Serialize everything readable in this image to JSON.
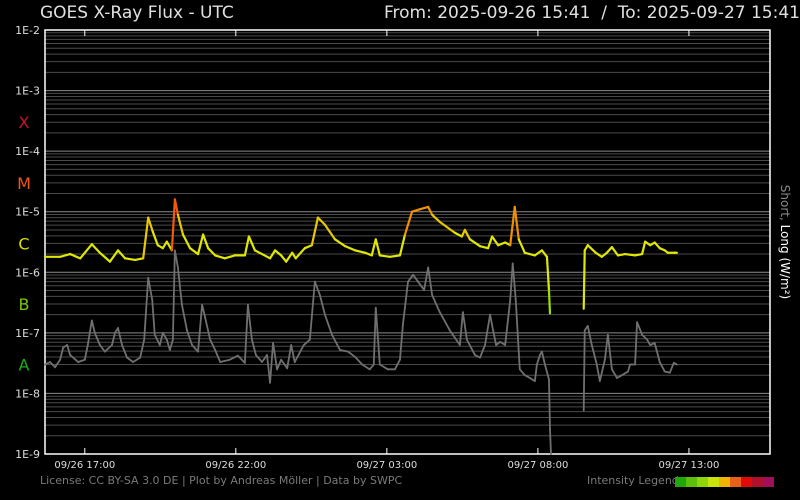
{
  "header": {
    "title": "GOES X-Ray Flux - UTC",
    "range": "From: 2025-09-26 15:41  /  To: 2025-09-27 15:41"
  },
  "footer": {
    "credits": "License: CC BY-SA 3.0 DE | Plot by Andreas Möller | Data by SWPC",
    "legend_label": "Intensity Legend",
    "legend_colors": [
      "#1fa80a",
      "#5cc00a",
      "#8cd60a",
      "#c8e40a",
      "#f0b400",
      "#e8601a",
      "#e00a0a",
      "#b0102a",
      "#a0105a"
    ]
  },
  "chart_data": {
    "type": "line",
    "title": "GOES X-Ray Flux - UTC",
    "ylabel_short": "Short,",
    "ylabel_long": "Long (W/m²)",
    "y_scale": "log",
    "ylim": [
      1e-09,
      0.01
    ],
    "y_ticks": [
      "1E-2",
      "1E-3",
      "1E-4",
      "1E-5",
      "1E-6",
      "1E-7",
      "1E-8",
      "1E-9"
    ],
    "xlim": [
      "09/26 15:41",
      "09/27 15:41"
    ],
    "x_ticks": [
      "09/26 17:00",
      "09/26 22:00",
      "09/27 03:00",
      "09/27 08:00",
      "09/27 13:00"
    ],
    "grid": true,
    "background": "#000000",
    "classes": [
      {
        "label": "X",
        "flux": 0.0003,
        "color": "#c8102e"
      },
      {
        "label": "M",
        "flux": 3e-05,
        "color": "#f05a0a"
      },
      {
        "label": "C",
        "flux": 3e-06,
        "color": "#d8e000"
      },
      {
        "label": "B",
        "flux": 3e-07,
        "color": "#78c800"
      },
      {
        "label": "A",
        "flux": 3e-08,
        "color": "#18b020"
      }
    ],
    "series": [
      {
        "name": "Long",
        "color": "#e0e800",
        "points": [
          [
            "15:41",
            1.8e-06
          ],
          [
            "16:11",
            1.8e-06
          ],
          [
            "16:31",
            2e-06
          ],
          [
            "16:51",
            1.7e-06
          ],
          [
            "17:14",
            2.9e-06
          ],
          [
            "17:30",
            2.1e-06
          ],
          [
            "17:50",
            1.5e-06
          ],
          [
            "18:06",
            2.3e-06
          ],
          [
            "18:20",
            1.7e-06
          ],
          [
            "18:40",
            1.6e-06
          ],
          [
            "18:56",
            1.7e-06
          ],
          [
            "19:06",
            8e-06
          ],
          [
            "19:15",
            4.7e-06
          ],
          [
            "19:25",
            2.8e-06
          ],
          [
            "19:35",
            2.5e-06
          ],
          [
            "19:43",
            3.2e-06
          ],
          [
            "19:53",
            2.3e-06
          ],
          [
            "19:59",
            1.6e-05
          ],
          [
            "20:05",
            8.9e-06
          ],
          [
            "20:15",
            4.2e-06
          ],
          [
            "20:29",
            2.5e-06
          ],
          [
            "20:45",
            2e-06
          ],
          [
            "20:55",
            4.2e-06
          ],
          [
            "21:05",
            2.5e-06
          ],
          [
            "21:19",
            1.9e-06
          ],
          [
            "21:38",
            1.7e-06
          ],
          [
            "21:58",
            1.9e-06
          ],
          [
            "22:18",
            1.9e-06
          ],
          [
            "22:26",
            3.9e-06
          ],
          [
            "22:38",
            2.3e-06
          ],
          [
            "22:52",
            2e-06
          ],
          [
            "23:08",
            1.7e-06
          ],
          [
            "23:18",
            2.3e-06
          ],
          [
            "23:30",
            1.9e-06
          ],
          [
            "23:40",
            1.5e-06
          ],
          [
            "23:52",
            2.1e-06
          ],
          [
            "23:59",
            1.7e-06
          ],
          [
            "00:17",
            2.5e-06
          ],
          [
            "00:31",
            2.8e-06
          ],
          [
            "00:43",
            8e-06
          ],
          [
            "00:57",
            6.1e-06
          ],
          [
            "01:17",
            3.5e-06
          ],
          [
            "01:37",
            2.7e-06
          ],
          [
            "01:57",
            2.3e-06
          ],
          [
            "02:17",
            2.1e-06
          ],
          [
            "02:30",
            1.9e-06
          ],
          [
            "02:38",
            3.5e-06
          ],
          [
            "02:46",
            1.9e-06
          ],
          [
            "03:06",
            1.8e-06
          ],
          [
            "03:26",
            1.9e-06
          ],
          [
            "03:36",
            4.2e-06
          ],
          [
            "03:50",
            1e-05
          ],
          [
            "04:06",
            1.1e-05
          ],
          [
            "04:22",
            1.2e-05
          ],
          [
            "04:30",
            8.9e-06
          ],
          [
            "04:45",
            6.8e-06
          ],
          [
            "05:15",
            4.5e-06
          ],
          [
            "05:29",
            3.9e-06
          ],
          [
            "05:35",
            5e-06
          ],
          [
            "05:45",
            3.5e-06
          ],
          [
            "06:05",
            2.7e-06
          ],
          [
            "06:21",
            2.5e-06
          ],
          [
            "06:29",
            3.9e-06
          ],
          [
            "06:41",
            2.8e-06
          ],
          [
            "06:55",
            3.1e-06
          ],
          [
            "07:05",
            2.8e-06
          ],
          [
            "07:14",
            1.2e-05
          ],
          [
            "07:22",
            3.5e-06
          ],
          [
            "07:34",
            2.1e-06
          ],
          [
            "07:54",
            1.9e-06
          ],
          [
            "08:08",
            2.3e-06
          ],
          [
            "08:18",
            1.8e-06
          ],
          [
            "08:22",
            5e-07
          ],
          [
            "08:24",
            2.1e-07
          ],
          null,
          [
            "09:31",
            2.5e-07
          ],
          [
            "09:33",
            2.3e-06
          ],
          [
            "09:39",
            2.8e-06
          ],
          [
            "09:55",
            2.1e-06
          ],
          [
            "10:07",
            1.8e-06
          ],
          [
            "10:17",
            2.1e-06
          ],
          [
            "10:27",
            2.6e-06
          ],
          [
            "10:39",
            1.9e-06
          ],
          [
            "10:53",
            2e-06
          ],
          [
            "11:13",
            1.9e-06
          ],
          [
            "11:27",
            2e-06
          ],
          [
            "11:33",
            3.2e-06
          ],
          [
            "11:43",
            2.8e-06
          ],
          [
            "11:52",
            3.1e-06
          ],
          [
            "12:02",
            2.5e-06
          ],
          [
            "12:12",
            2.3e-06
          ],
          [
            "12:18",
            2.1e-06
          ],
          [
            "12:32",
            2.1e-06
          ],
          [
            "12:36",
            2.1e-06
          ]
        ]
      },
      {
        "name": "Short",
        "color": "#707070",
        "points": [
          [
            "15:41",
            3e-08
          ],
          [
            "15:51",
            3.3e-08
          ],
          [
            "16:01",
            2.7e-08
          ],
          [
            "16:11",
            3.6e-08
          ],
          [
            "16:17",
            5.7e-08
          ],
          [
            "16:25",
            6.3e-08
          ],
          [
            "16:31",
            4.3e-08
          ],
          [
            "16:47",
            3.3e-08
          ],
          [
            "17:00",
            3.6e-08
          ],
          [
            "17:06",
            6.3e-08
          ],
          [
            "17:14",
            1.6e-07
          ],
          [
            "17:20",
            1e-07
          ],
          [
            "17:30",
            6.3e-08
          ],
          [
            "17:40",
            4.9e-08
          ],
          [
            "17:54",
            6.3e-08
          ],
          [
            "18:00",
            1e-07
          ],
          [
            "18:06",
            1.2e-07
          ],
          [
            "18:14",
            6.3e-08
          ],
          [
            "18:24",
            3.9e-08
          ],
          [
            "18:36",
            3.3e-08
          ],
          [
            "18:50",
            3.9e-08
          ],
          [
            "18:58",
            7.7e-08
          ],
          [
            "19:06",
            8.1e-07
          ],
          [
            "19:14",
            3.5e-07
          ],
          [
            "19:19",
            9.3e-08
          ],
          [
            "19:29",
            6.3e-08
          ],
          [
            "19:35",
            1e-07
          ],
          [
            "19:43",
            7.7e-08
          ],
          [
            "19:49",
            5.2e-08
          ],
          [
            "19:55",
            7.7e-08
          ],
          [
            "19:59",
            2.3e-06
          ],
          [
            "20:05",
            1.2e-06
          ],
          [
            "20:13",
            2.9e-07
          ],
          [
            "20:23",
            1.1e-07
          ],
          [
            "20:33",
            6.3e-08
          ],
          [
            "20:45",
            4.9e-08
          ],
          [
            "20:53",
            2.9e-07
          ],
          [
            "20:59",
            1.8e-07
          ],
          [
            "21:09",
            7.7e-08
          ],
          [
            "21:19",
            5.2e-08
          ],
          [
            "21:29",
            3.3e-08
          ],
          [
            "21:48",
            3.6e-08
          ],
          [
            "22:04",
            4.2e-08
          ],
          [
            "22:18",
            3.2e-08
          ],
          [
            "22:24",
            2.9e-07
          ],
          [
            "22:32",
            7.7e-08
          ],
          [
            "22:40",
            4.3e-08
          ],
          [
            "22:52",
            3.3e-08
          ],
          [
            "23:02",
            4.3e-08
          ],
          [
            "23:08",
            1.5e-08
          ],
          [
            "23:14",
            6.8e-08
          ],
          [
            "23:22",
            2.5e-08
          ],
          [
            "23:30",
            3.6e-08
          ],
          [
            "23:42",
            2.6e-08
          ],
          [
            "23:50",
            6.3e-08
          ],
          [
            "23:57",
            3.3e-08
          ],
          [
            "00:15",
            6.3e-08
          ],
          [
            "00:27",
            7.7e-08
          ],
          [
            "00:37",
            7e-07
          ],
          [
            "00:47",
            4.2e-07
          ],
          [
            "00:57",
            2e-07
          ],
          [
            "01:11",
            9.3e-08
          ],
          [
            "01:27",
            5.2e-08
          ],
          [
            "01:43",
            4.9e-08
          ],
          [
            "01:57",
            4e-08
          ],
          [
            "02:11",
            3e-08
          ],
          [
            "02:26",
            2.5e-08
          ],
          [
            "02:34",
            3e-08
          ],
          [
            "02:38",
            2.6e-07
          ],
          [
            "02:46",
            3e-08
          ],
          [
            "03:02",
            2.5e-08
          ],
          [
            "03:16",
            2.5e-08
          ],
          [
            "03:26",
            3.6e-08
          ],
          [
            "03:32",
            1.4e-07
          ],
          [
            "03:42",
            7e-07
          ],
          [
            "03:52",
            9.1e-07
          ],
          [
            "04:02",
            7e-07
          ],
          [
            "04:14",
            5.1e-07
          ],
          [
            "04:22",
            1.2e-06
          ],
          [
            "04:30",
            4.2e-07
          ],
          [
            "04:45",
            2.2e-07
          ],
          [
            "05:05",
            1.1e-07
          ],
          [
            "05:25",
            6.3e-08
          ],
          [
            "05:31",
            2.2e-07
          ],
          [
            "05:39",
            7.7e-08
          ],
          [
            "05:55",
            4.3e-08
          ],
          [
            "06:05",
            3.9e-08
          ],
          [
            "06:15",
            6.3e-08
          ],
          [
            "06:25",
            2e-07
          ],
          [
            "06:31",
            1.1e-07
          ],
          [
            "06:37",
            6.3e-08
          ],
          [
            "06:45",
            7.1e-08
          ],
          [
            "06:55",
            6.3e-08
          ],
          [
            "07:05",
            3.5e-07
          ],
          [
            "07:10",
            1.4e-06
          ],
          [
            "07:16",
            3.5e-07
          ],
          [
            "07:24",
            2.5e-08
          ],
          [
            "07:34",
            2e-08
          ],
          [
            "07:44",
            1.8e-08
          ],
          [
            "07:54",
            1.6e-08
          ],
          [
            "07:58",
            3e-08
          ],
          [
            "08:04",
            4.3e-08
          ],
          [
            "08:08",
            4.9e-08
          ],
          [
            "08:14",
            3e-08
          ],
          [
            "08:22",
            1.7e-08
          ],
          [
            "08:24",
            2.6e-09
          ],
          [
            "08:26",
            1e-09
          ],
          null,
          [
            "09:31",
            5.2e-09
          ],
          [
            "09:33",
            1.1e-07
          ],
          [
            "09:39",
            1.3e-07
          ],
          [
            "09:47",
            6.3e-08
          ],
          [
            "09:57",
            3e-08
          ],
          [
            "10:03",
            1.6e-08
          ],
          [
            "10:13",
            3.6e-08
          ],
          [
            "10:19",
            9.3e-08
          ],
          [
            "10:27",
            2.5e-08
          ],
          [
            "10:37",
            1.8e-08
          ],
          [
            "10:47",
            2e-08
          ],
          [
            "10:59",
            2.3e-08
          ],
          [
            "11:03",
            3e-08
          ],
          [
            "11:13",
            3e-08
          ],
          [
            "11:17",
            1.5e-07
          ],
          [
            "11:27",
            9.3e-08
          ],
          [
            "11:37",
            7.7e-08
          ],
          [
            "11:43",
            6.3e-08
          ],
          [
            "11:52",
            6.8e-08
          ],
          [
            "12:02",
            3.3e-08
          ],
          [
            "12:12",
            2.3e-08
          ],
          [
            "12:22",
            2.2e-08
          ],
          [
            "12:30",
            3.2e-08
          ],
          [
            "12:36",
            3e-08
          ]
        ]
      }
    ]
  }
}
